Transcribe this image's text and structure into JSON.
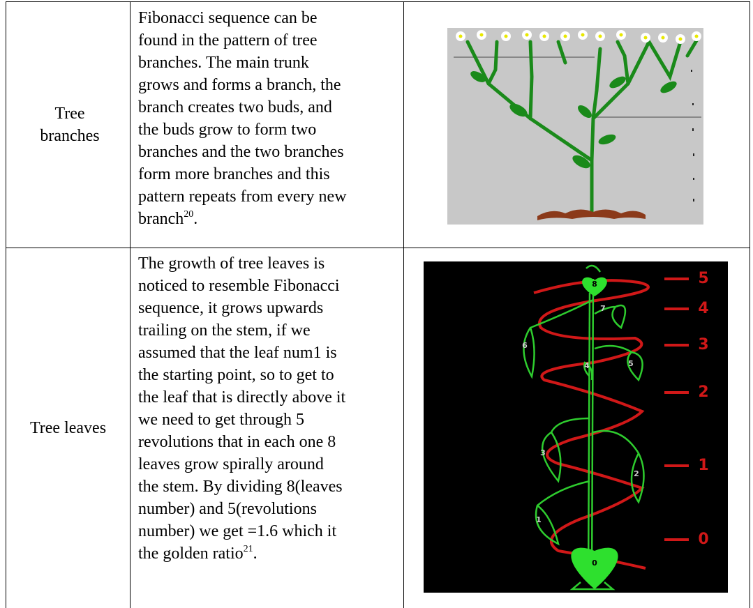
{
  "table": {
    "rows": [
      {
        "label": "Tree branches",
        "lines": [
          "Fibonacci sequence can be",
          "found in the pattern of tree",
          "branches. The main trunk",
          "grows and forms a branch, the",
          "branch creates two buds, and",
          "the buds grow to form two",
          "branches and the two branches",
          "form more branches and this",
          "pattern repeats from every new",
          "branch"
        ],
        "ref": "20",
        "tail": "."
      },
      {
        "label": "Tree leaves",
        "lines": [
          "The growth of tree leaves is",
          "noticed to resemble Fibonacci",
          "sequence, it grows upwards",
          "trailing on the stem, if we",
          "assumed that the leaf num1 is",
          "the starting point, so to get to",
          "the leaf that is directly above it",
          "we need to get through 5",
          "revolutions that in each one 8",
          "leaves grow spirally around",
          "the stem. By dividing 8(leaves",
          "number) and 5(revolutions",
          "number) we get =1.6 which it",
          "the golden ratio"
        ],
        "ref": "21",
        "tail": "."
      }
    ]
  },
  "figures": {
    "leaves": {
      "leaf_labels": [
        "0",
        "1",
        "2",
        "3",
        "4",
        "5",
        "6",
        "7",
        "8"
      ],
      "revolution_labels": [
        "0",
        "1",
        "2",
        "3",
        "4",
        "5"
      ]
    }
  }
}
